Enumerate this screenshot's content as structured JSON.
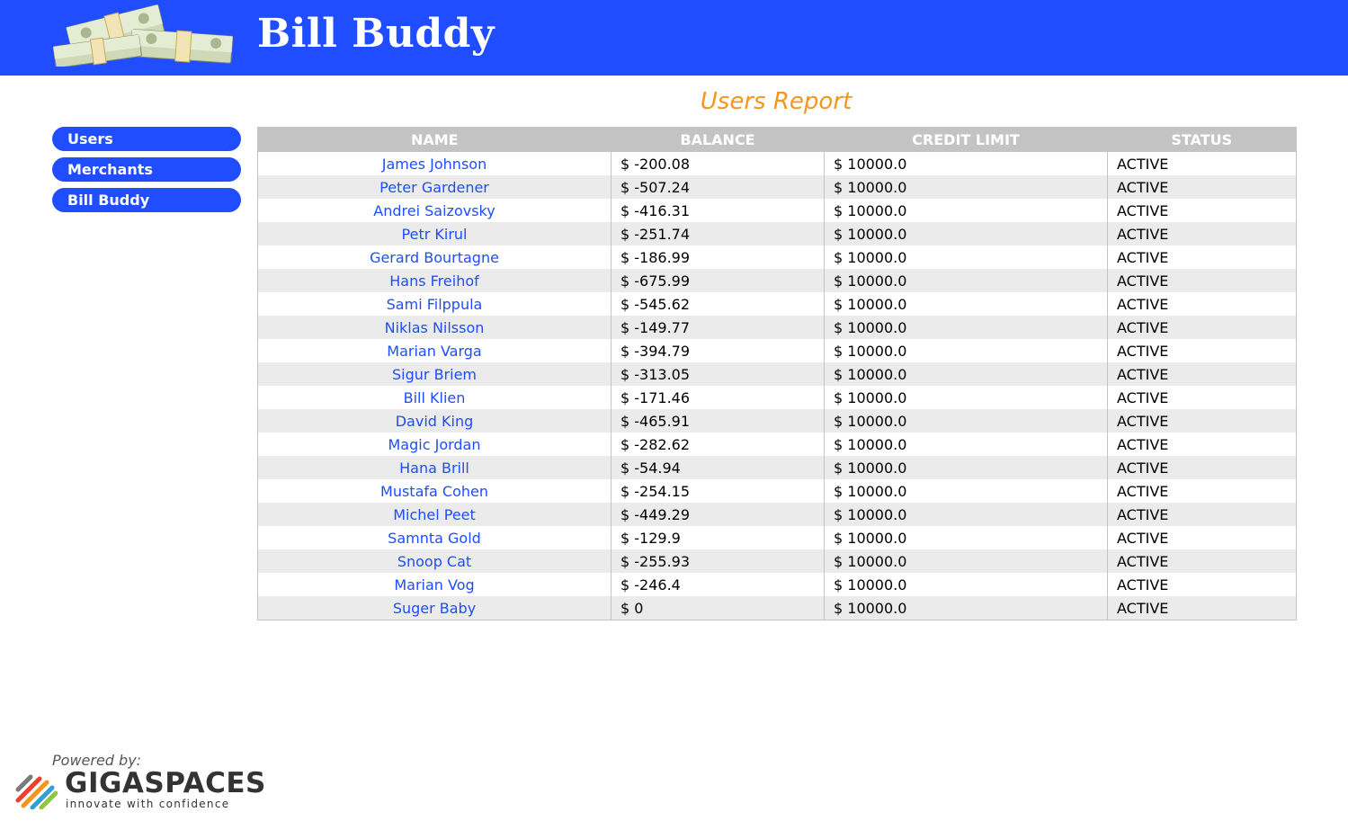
{
  "header": {
    "title": "Bill Buddy",
    "logo_icon": "money-stacks-icon",
    "background": "#1f4dff"
  },
  "report": {
    "title": "Users Report",
    "title_color": "#f7941d"
  },
  "sidebar": {
    "items": [
      {
        "label": "Users"
      },
      {
        "label": "Merchants"
      },
      {
        "label": "Bill Buddy"
      }
    ]
  },
  "table": {
    "columns": [
      "NAME",
      "BALANCE",
      "CREDIT LIMIT",
      "STATUS"
    ],
    "rows": [
      {
        "name": "James Johnson",
        "balance": "$ -200.08",
        "credit_limit": "$ 10000.0",
        "status": "ACTIVE"
      },
      {
        "name": "Peter Gardener",
        "balance": "$ -507.24",
        "credit_limit": "$ 10000.0",
        "status": "ACTIVE"
      },
      {
        "name": "Andrei Saizovsky",
        "balance": "$ -416.31",
        "credit_limit": "$ 10000.0",
        "status": "ACTIVE"
      },
      {
        "name": "Petr Kirul",
        "balance": "$ -251.74",
        "credit_limit": "$ 10000.0",
        "status": "ACTIVE"
      },
      {
        "name": "Gerard Bourtagne",
        "balance": "$ -186.99",
        "credit_limit": "$ 10000.0",
        "status": "ACTIVE"
      },
      {
        "name": "Hans Freihof",
        "balance": "$ -675.99",
        "credit_limit": "$ 10000.0",
        "status": "ACTIVE"
      },
      {
        "name": "Sami Filppula",
        "balance": "$ -545.62",
        "credit_limit": "$ 10000.0",
        "status": "ACTIVE"
      },
      {
        "name": "Niklas Nilsson",
        "balance": "$ -149.77",
        "credit_limit": "$ 10000.0",
        "status": "ACTIVE"
      },
      {
        "name": "Marian Varga",
        "balance": "$ -394.79",
        "credit_limit": "$ 10000.0",
        "status": "ACTIVE"
      },
      {
        "name": "Sigur Briem",
        "balance": "$ -313.05",
        "credit_limit": "$ 10000.0",
        "status": "ACTIVE"
      },
      {
        "name": "Bill Klien",
        "balance": "$ -171.46",
        "credit_limit": "$ 10000.0",
        "status": "ACTIVE"
      },
      {
        "name": "David King",
        "balance": "$ -465.91",
        "credit_limit": "$ 10000.0",
        "status": "ACTIVE"
      },
      {
        "name": "Magic Jordan",
        "balance": "$ -282.62",
        "credit_limit": "$ 10000.0",
        "status": "ACTIVE"
      },
      {
        "name": "Hana Brill",
        "balance": "$ -54.94",
        "credit_limit": "$ 10000.0",
        "status": "ACTIVE"
      },
      {
        "name": "Mustafa Cohen",
        "balance": "$ -254.15",
        "credit_limit": "$ 10000.0",
        "status": "ACTIVE"
      },
      {
        "name": "Michel Peet",
        "balance": "$ -449.29",
        "credit_limit": "$ 10000.0",
        "status": "ACTIVE"
      },
      {
        "name": "Samnta Gold",
        "balance": "$ -129.9",
        "credit_limit": "$ 10000.0",
        "status": "ACTIVE"
      },
      {
        "name": "Snoop Cat",
        "balance": "$ -255.93",
        "credit_limit": "$ 10000.0",
        "status": "ACTIVE"
      },
      {
        "name": "Marian Vog",
        "balance": "$ -246.4",
        "credit_limit": "$ 10000.0",
        "status": "ACTIVE"
      },
      {
        "name": "Suger Baby",
        "balance": "$ 0",
        "credit_limit": "$ 10000.0",
        "status": "ACTIVE"
      }
    ]
  },
  "footer": {
    "powered_by": "Powered by:",
    "brand": "GIGASPACES",
    "tagline": "innovate with confidence",
    "brand_icon": "gigaspaces-logo-icon"
  }
}
